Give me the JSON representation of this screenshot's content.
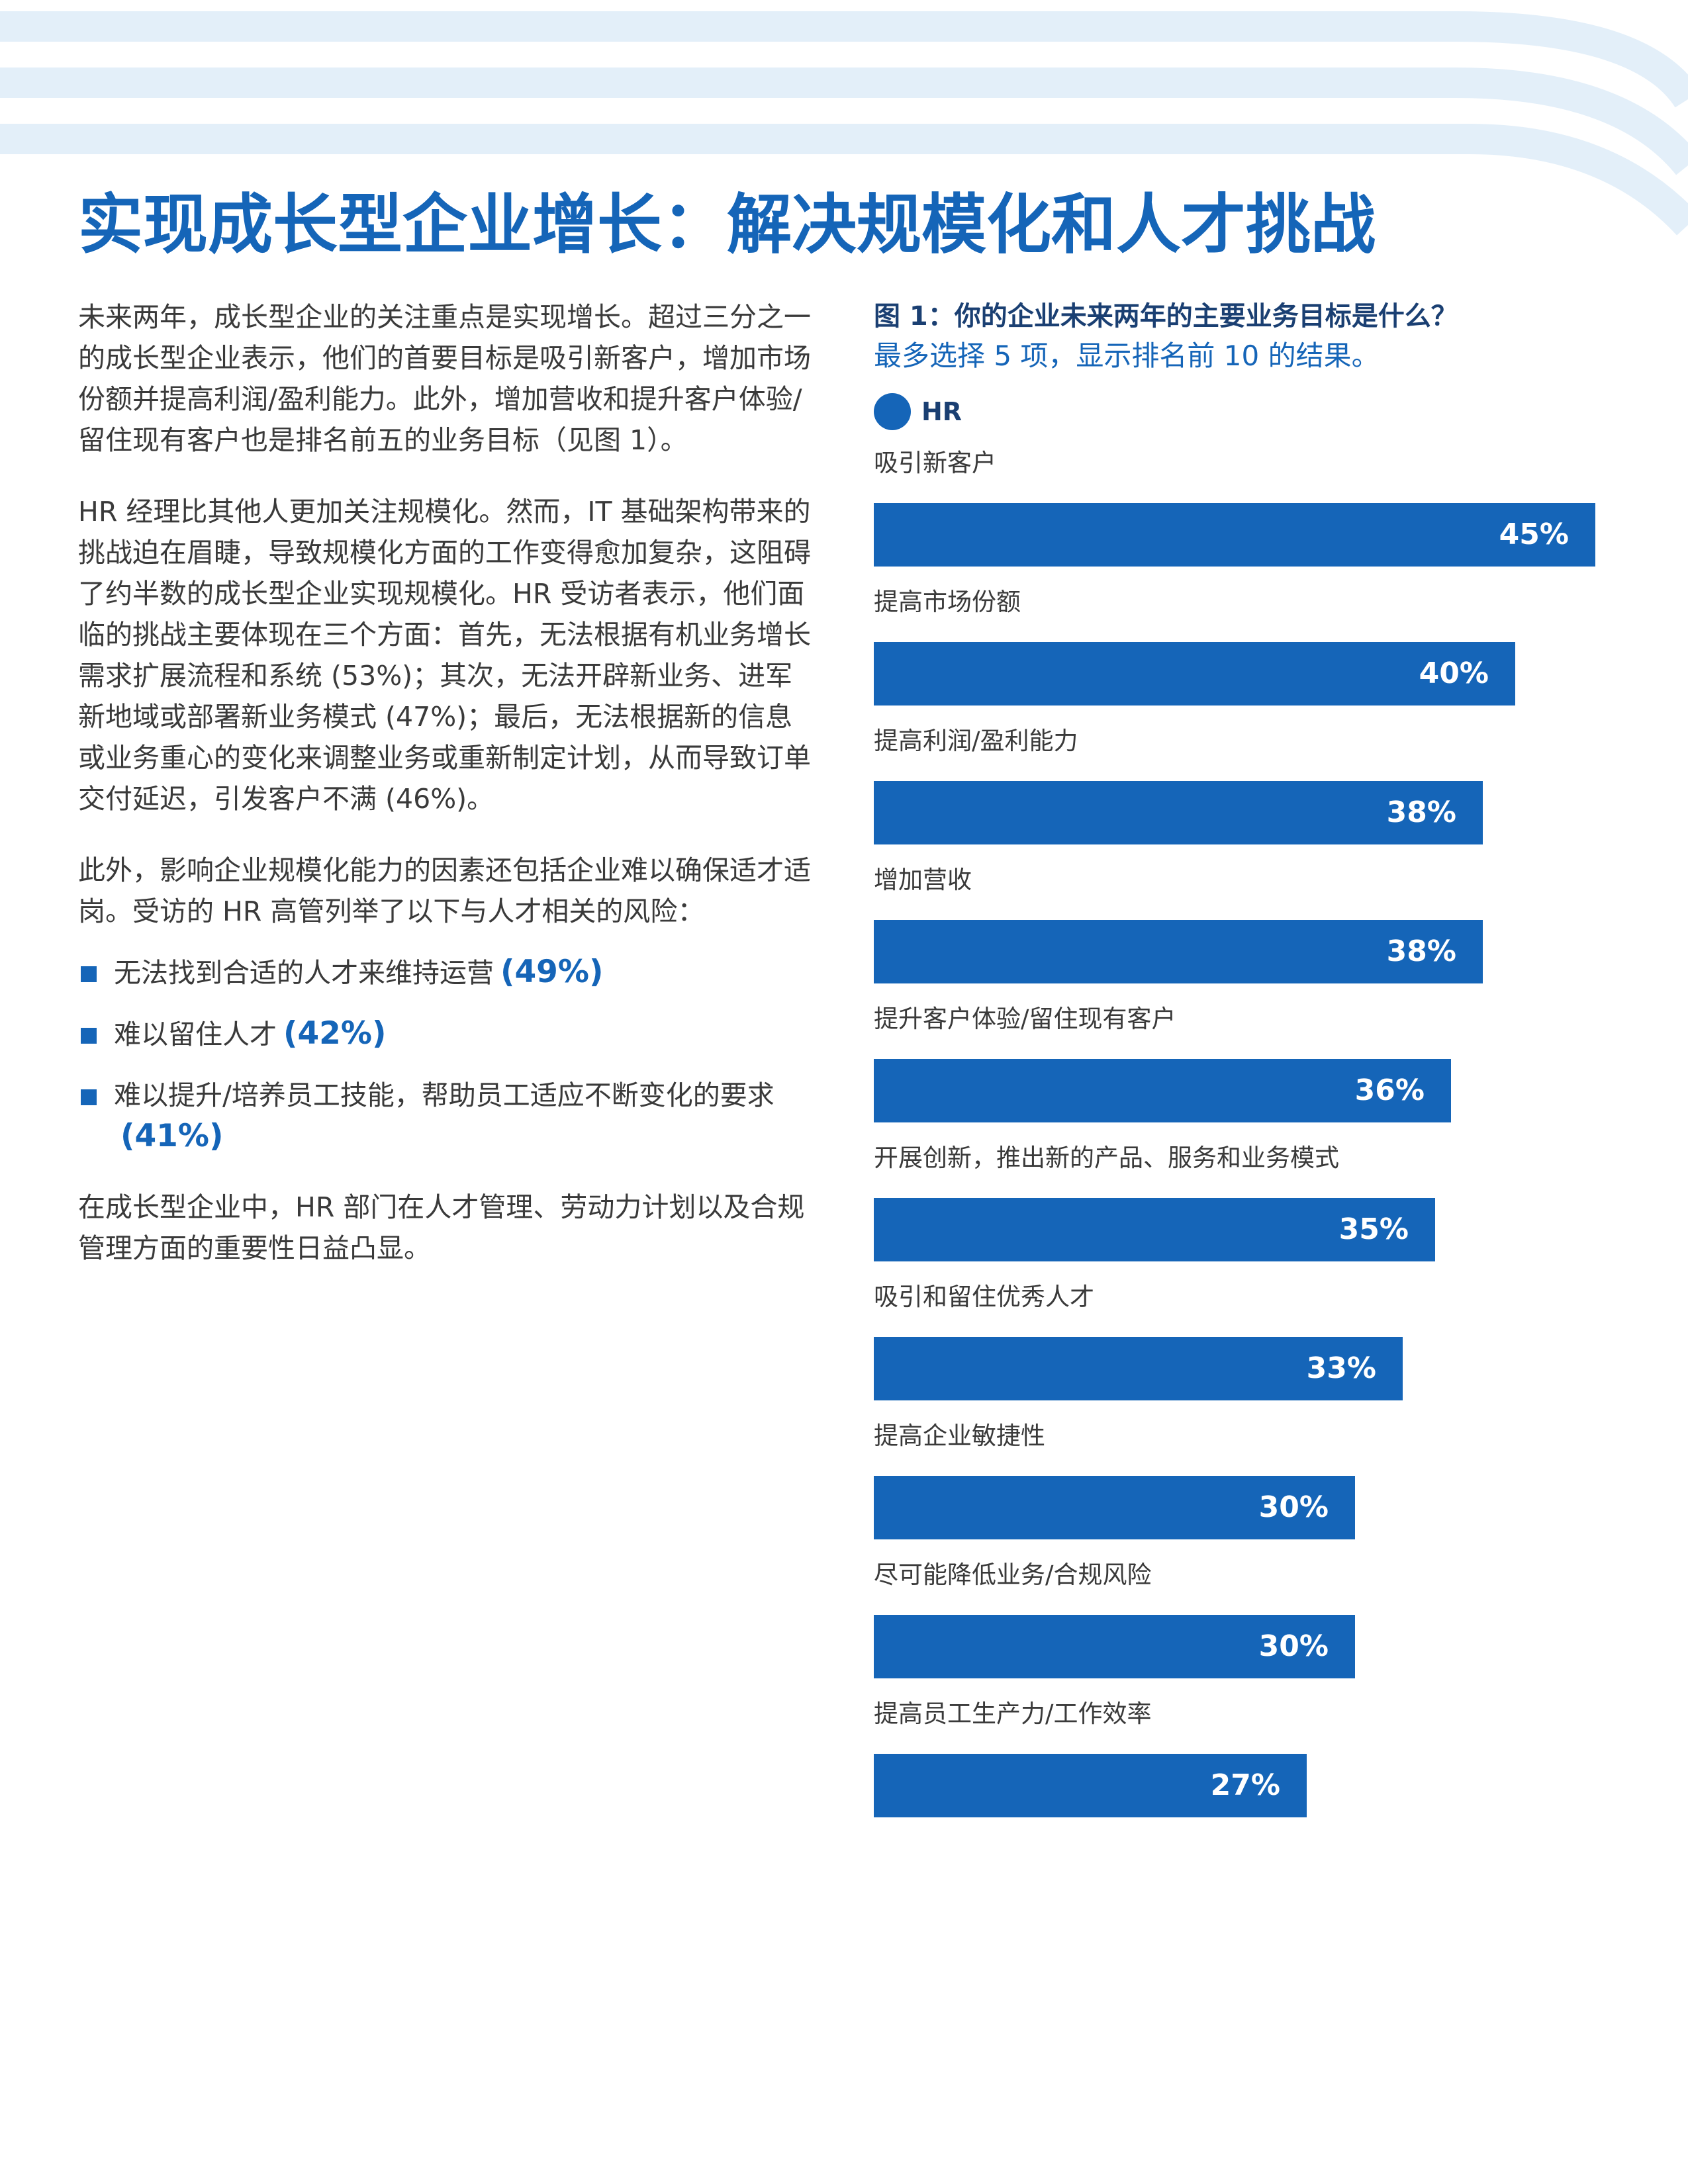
{
  "title": "实现成长型企业增长：解决规模化和人才挑战",
  "body": {
    "p1": "未来两年，成长型企业的关注重点是实现增长。超过三分之一的成长型企业表示，他们的首要目标是吸引新客户，增加市场份额并提高利润/盈利能力。此外，增加营收和提升客户体验/留住现有客户也是排名前五的业务目标（见图 1）。",
    "p2": "HR 经理比其他人更加关注规模化。然而，IT 基础架构带来的挑战迫在眉睫，导致规模化方面的工作变得愈加复杂，这阻碍了约半数的成长型企业实现规模化。HR 受访者表示，他们面临的挑战主要体现在三个方面：首先，无法根据有机业务增长需求扩展流程和系统 (53%)；其次，无法开辟新业务、进军新地域或部署新业务模式 (47%)；最后，无法根据新的信息或业务重心的变化来调整业务或重新制定计划，从而导致订单交付延迟，引发客户不满 (46%)。",
    "p3": "此外，影响企业规模化能力的因素还包括企业难以确保适才适岗。受访的 HR 高管列举了以下与人才相关的风险：",
    "bullets": [
      {
        "text": "无法找到合适的人才来维持运营",
        "pct": "(49%)"
      },
      {
        "text": "难以留住人才",
        "pct": "(42%)"
      },
      {
        "text": "难以提升/培养员工技能，帮助员工适应不断变化的要求",
        "pct": "(41%)"
      }
    ],
    "p4": "在成长型企业中，HR 部门在人才管理、劳动力计划以及合规管理方面的重要性日益凸显。"
  },
  "colors": {
    "accent": "#1565b8",
    "deco": "#e3eff9",
    "text": "#3a3a3a",
    "heading": "#1a3f72"
  },
  "chart_data": {
    "type": "bar",
    "orientation": "horizontal",
    "title": "图 1：你的企业未来两年的主要业务目标是什么？",
    "subtitle": "最多选择 5 项，显示排名前 10 的结果。",
    "legend": "HR",
    "series": [
      {
        "name": "HR",
        "values": [
          45,
          40,
          38,
          38,
          36,
          35,
          33,
          30,
          30,
          27
        ]
      }
    ],
    "categories": [
      "吸引新客户",
      "提高市场份额",
      "提高利润/盈利能力",
      "增加营收",
      "提升客户体验/留住现有客户",
      "开展创新，推出新的产品、服务和业务模式",
      "吸引和留住优秀人才",
      "提高企业敏捷性",
      "尽可能降低业务/合规风险",
      "提高员工生产力/工作效率"
    ],
    "value_labels": [
      "45%",
      "40%",
      "38%",
      "38%",
      "36%",
      "35%",
      "33%",
      "30%",
      "30%",
      "27%"
    ],
    "xlim": [
      0,
      45
    ]
  }
}
